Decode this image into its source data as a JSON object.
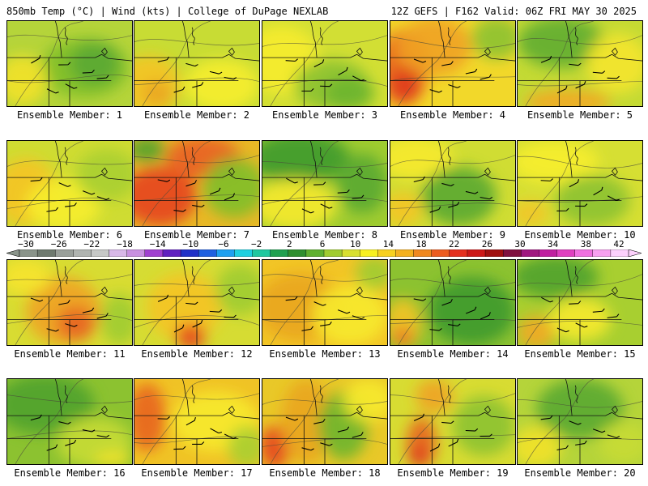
{
  "header": {
    "left": "850mb Temp (°C) | Wind (kts) | College of DuPage NEXLAB",
    "right": "12Z GEFS | F162 Valid: 06Z FRI MAY 30 2025"
  },
  "label_prefix": "Ensemble Member: ",
  "panels": [
    {
      "label": "Ensemble Member: 1",
      "member": 1,
      "base": "#b5d43a",
      "blobs": [
        [
          "#7fbf2a",
          0.62,
          0.55,
          0.35,
          0.35
        ],
        [
          "#f2e22a",
          0.12,
          0.7,
          0.2,
          0.3
        ],
        [
          "#5aa832",
          0.7,
          0.5,
          0.2,
          0.25
        ]
      ]
    },
    {
      "label": "Ensemble Member: 2",
      "member": 2,
      "base": "#c8dc34",
      "blobs": [
        [
          "#f5c423",
          0.12,
          0.75,
          0.25,
          0.35
        ],
        [
          "#e9a51f",
          0.18,
          0.85,
          0.12,
          0.15
        ],
        [
          "#f7ee2d",
          0.7,
          0.75,
          0.3,
          0.3
        ]
      ]
    },
    {
      "label": "Ensemble Member: 3",
      "member": 3,
      "base": "#d2df34",
      "blobs": [
        [
          "#f7ec2c",
          0.15,
          0.45,
          0.3,
          0.4
        ],
        [
          "#8cc230",
          0.55,
          0.75,
          0.3,
          0.3
        ],
        [
          "#6db52e",
          0.7,
          0.85,
          0.2,
          0.2
        ]
      ]
    },
    {
      "label": "Ensemble Member: 4",
      "member": 4,
      "base": "#f2d82a",
      "blobs": [
        [
          "#e8641f",
          0.1,
          0.55,
          0.2,
          0.45
        ],
        [
          "#df3b1e",
          0.12,
          0.75,
          0.12,
          0.2
        ],
        [
          "#f0a223",
          0.35,
          0.3,
          0.3,
          0.35
        ],
        [
          "#8cc230",
          0.85,
          0.2,
          0.2,
          0.25
        ]
      ]
    },
    {
      "label": "Ensemble Member: 5",
      "member": 5,
      "base": "#c4da34",
      "blobs": [
        [
          "#5fad31",
          0.35,
          0.25,
          0.35,
          0.3
        ],
        [
          "#f2a825",
          0.4,
          0.95,
          0.35,
          0.15
        ],
        [
          "#f5e52b",
          0.8,
          0.5,
          0.25,
          0.35
        ]
      ]
    },
    {
      "label": "Ensemble Member: 6",
      "member": 6,
      "base": "#cfdc32",
      "blobs": [
        [
          "#f5c424",
          0.15,
          0.6,
          0.25,
          0.4
        ],
        [
          "#f7ee2d",
          0.45,
          0.75,
          0.3,
          0.3
        ],
        [
          "#a8cf30",
          0.8,
          0.4,
          0.25,
          0.3
        ]
      ]
    },
    {
      "label": "Ensemble Member: 7",
      "member": 7,
      "base": "#e8b826",
      "blobs": [
        [
          "#e6441e",
          0.2,
          0.65,
          0.3,
          0.35
        ],
        [
          "#e95f21",
          0.55,
          0.2,
          0.3,
          0.25
        ],
        [
          "#7fbf2a",
          0.8,
          0.55,
          0.25,
          0.35
        ],
        [
          "#4fa22f",
          0.1,
          0.1,
          0.15,
          0.15
        ]
      ]
    },
    {
      "label": "Ensemble Member: 8",
      "member": 8,
      "base": "#9fcc30",
      "blobs": [
        [
          "#3f9a2f",
          0.3,
          0.2,
          0.4,
          0.3
        ],
        [
          "#f7ea2c",
          0.25,
          0.75,
          0.35,
          0.3
        ],
        [
          "#5aa832",
          0.8,
          0.5,
          0.2,
          0.35
        ]
      ]
    },
    {
      "label": "Ensemble Member: 9",
      "member": 9,
      "base": "#d0dd33",
      "blobs": [
        [
          "#f7ea2c",
          0.2,
          0.2,
          0.3,
          0.25
        ],
        [
          "#5aa832",
          0.55,
          0.65,
          0.3,
          0.35
        ],
        [
          "#f5c424",
          0.1,
          0.8,
          0.15,
          0.2
        ]
      ]
    },
    {
      "label": "Ensemble Member: 10",
      "member": 10,
      "base": "#d6df33",
      "blobs": [
        [
          "#f7ee2d",
          0.3,
          0.25,
          0.35,
          0.25
        ],
        [
          "#8cc230",
          0.6,
          0.7,
          0.3,
          0.3
        ],
        [
          "#f2c527",
          0.1,
          0.85,
          0.15,
          0.15
        ]
      ]
    },
    {
      "label": "Ensemble Member: 11",
      "member": 11,
      "base": "#d8dc32",
      "blobs": [
        [
          "#f0a223",
          0.45,
          0.6,
          0.3,
          0.4
        ],
        [
          "#e8641f",
          0.55,
          0.75,
          0.15,
          0.2
        ],
        [
          "#f7e42c",
          0.15,
          0.2,
          0.2,
          0.2
        ],
        [
          "#9fcc30",
          0.9,
          0.7,
          0.15,
          0.3
        ]
      ]
    },
    {
      "label": "Ensemble Member: 12",
      "member": 12,
      "base": "#d6dc33",
      "blobs": [
        [
          "#f5c424",
          0.4,
          0.55,
          0.3,
          0.4
        ],
        [
          "#e6441e",
          0.45,
          0.9,
          0.12,
          0.15
        ],
        [
          "#9fcc30",
          0.85,
          0.35,
          0.2,
          0.3
        ]
      ]
    },
    {
      "label": "Ensemble Member: 13",
      "member": 13,
      "base": "#f2c526",
      "blobs": [
        [
          "#e9a51f",
          0.3,
          0.55,
          0.35,
          0.4
        ],
        [
          "#f7ea2c",
          0.7,
          0.65,
          0.3,
          0.35
        ],
        [
          "#9fcc30",
          0.9,
          0.15,
          0.15,
          0.2
        ]
      ]
    },
    {
      "label": "Ensemble Member: 14",
      "member": 14,
      "base": "#8cc230",
      "blobs": [
        [
          "#3f9a2f",
          0.65,
          0.6,
          0.35,
          0.4
        ],
        [
          "#f5c424",
          0.1,
          0.75,
          0.15,
          0.3
        ],
        [
          "#e8641f",
          0.1,
          0.9,
          0.08,
          0.1
        ]
      ]
    },
    {
      "label": "Ensemble Member: 15",
      "member": 15,
      "base": "#a8cf30",
      "blobs": [
        [
          "#4fa22f",
          0.3,
          0.2,
          0.35,
          0.25
        ],
        [
          "#f2a825",
          0.15,
          0.85,
          0.15,
          0.2
        ],
        [
          "#f7ea2c",
          0.5,
          0.7,
          0.25,
          0.25
        ]
      ]
    },
    {
      "label": "Ensemble Member: 16",
      "member": 16,
      "base": "#8cc230",
      "blobs": [
        [
          "#4fa22f",
          0.3,
          0.3,
          0.4,
          0.35
        ],
        [
          "#c8dc34",
          0.7,
          0.75,
          0.3,
          0.3
        ],
        [
          "#f2e22a",
          0.85,
          0.95,
          0.15,
          0.1
        ]
      ]
    },
    {
      "label": "Ensemble Member: 17",
      "member": 17,
      "base": "#f0c325",
      "blobs": [
        [
          "#e8641f",
          0.1,
          0.45,
          0.15,
          0.4
        ],
        [
          "#f7ea2c",
          0.65,
          0.5,
          0.35,
          0.35
        ],
        [
          "#a8cf30",
          0.9,
          0.8,
          0.15,
          0.25
        ]
      ]
    },
    {
      "label": "Ensemble Member: 18",
      "member": 18,
      "base": "#e9c828",
      "blobs": [
        [
          "#e6441e",
          0.1,
          0.8,
          0.12,
          0.25
        ],
        [
          "#e9a51f",
          0.35,
          0.5,
          0.2,
          0.5
        ],
        [
          "#6db52e",
          0.65,
          0.55,
          0.2,
          0.4
        ],
        [
          "#f7ea2c",
          0.85,
          0.25,
          0.2,
          0.25
        ]
      ]
    },
    {
      "label": "Ensemble Member: 19",
      "member": 19,
      "base": "#d8dc32",
      "blobs": [
        [
          "#e8641f",
          0.25,
          0.75,
          0.12,
          0.3
        ],
        [
          "#df3b1e",
          0.22,
          0.9,
          0.08,
          0.12
        ],
        [
          "#f0a223",
          0.35,
          0.2,
          0.15,
          0.2
        ],
        [
          "#8cc230",
          0.75,
          0.55,
          0.25,
          0.35
        ]
      ]
    },
    {
      "label": "Ensemble Member: 20",
      "member": 20,
      "base": "#b5d43a",
      "blobs": [
        [
          "#5aa832",
          0.5,
          0.35,
          0.35,
          0.35
        ],
        [
          "#f2e22a",
          0.15,
          0.8,
          0.2,
          0.25
        ],
        [
          "#c8dc34",
          0.85,
          0.75,
          0.2,
          0.25
        ]
      ]
    }
  ],
  "colorbar": {
    "ticks": [
      "−30",
      "−26",
      "−22",
      "−18",
      "−14",
      "−10",
      "−6",
      "−2",
      "2",
      "6",
      "10",
      "14",
      "18",
      "22",
      "26",
      "30",
      "34",
      "38",
      "42"
    ],
    "colors": [
      "#8a948a",
      "#6f7a6f",
      "#9aa09a",
      "#b0b4b0",
      "#c6c8c6",
      "#d8b8e8",
      "#c890e0",
      "#a040d0",
      "#6020c0",
      "#2030c8",
      "#2060e0",
      "#20a0f0",
      "#20d0e0",
      "#20c8a0",
      "#20a050",
      "#2f8f2f",
      "#5fb030",
      "#a0cc30",
      "#d8e030",
      "#f8f020",
      "#f8d020",
      "#f4b020",
      "#f08820",
      "#ec5c20",
      "#e43020",
      "#cc1818",
      "#a01010",
      "#801040",
      "#a01880",
      "#c020a0",
      "#e040c0",
      "#f070e0",
      "#f8a0f0",
      "#fcd0fc"
    ]
  }
}
